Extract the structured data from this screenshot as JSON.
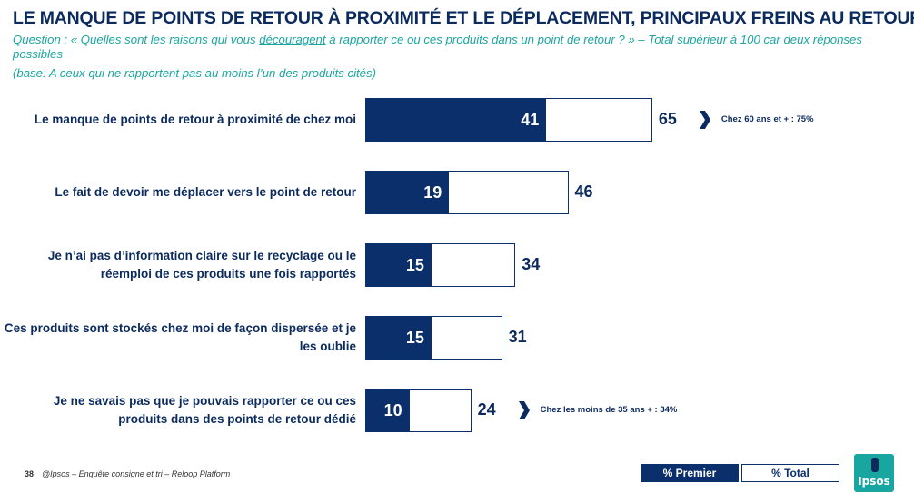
{
  "title": "LE MANQUE DE POINTS DE RETOUR À PROXIMITÉ ET LE DÉPLACEMENT, PRINCIPAUX FREINS AU RETOUR",
  "question": {
    "prefix": "Question : « Quelles sont les raisons qui vous ",
    "underlined": "découragent",
    "suffix": " à rapporter ce ou ces produits dans un point de retour ? » – Total supérieur à 100 car deux réponses possibles"
  },
  "base": "(base: A ceux qui ne rapportent pas au moins l’un des produits cités)",
  "chart_data": {
    "type": "bar",
    "orientation": "horizontal",
    "categories": [
      "Le manque de points de retour à proximité de chez moi",
      "Le fait de devoir me déplacer vers le point de retour",
      "Je n’ai pas d’information claire sur le recyclage ou le réemploi de ces produits une fois rapportés",
      "Ces produits sont stockés chez moi de façon dispersée et je les oublie",
      "Je ne savais pas que je pouvais rapporter ce ou ces produits dans des points de retour dédié"
    ],
    "series": [
      {
        "name": "% Premier",
        "values": [
          41,
          19,
          15,
          15,
          10
        ]
      },
      {
        "name": "% Total",
        "values": [
          65,
          46,
          34,
          31,
          24
        ]
      }
    ],
    "annotations": [
      {
        "category_index": 0,
        "text": "Chez 60 ans et + : 75%"
      },
      {
        "category_index": 4,
        "text": "Chez les moins de 35 ans + : 34%"
      }
    ],
    "legend": "bottom-right",
    "grid": false,
    "colors": {
      "premier": "#0b2f6b",
      "total_border": "#0b2f6b"
    }
  },
  "footer": {
    "page_number": "38",
    "source": "@Ipsos – Enquête consigne et tri – Reloop Platform"
  },
  "logo_text": "Ipsos"
}
